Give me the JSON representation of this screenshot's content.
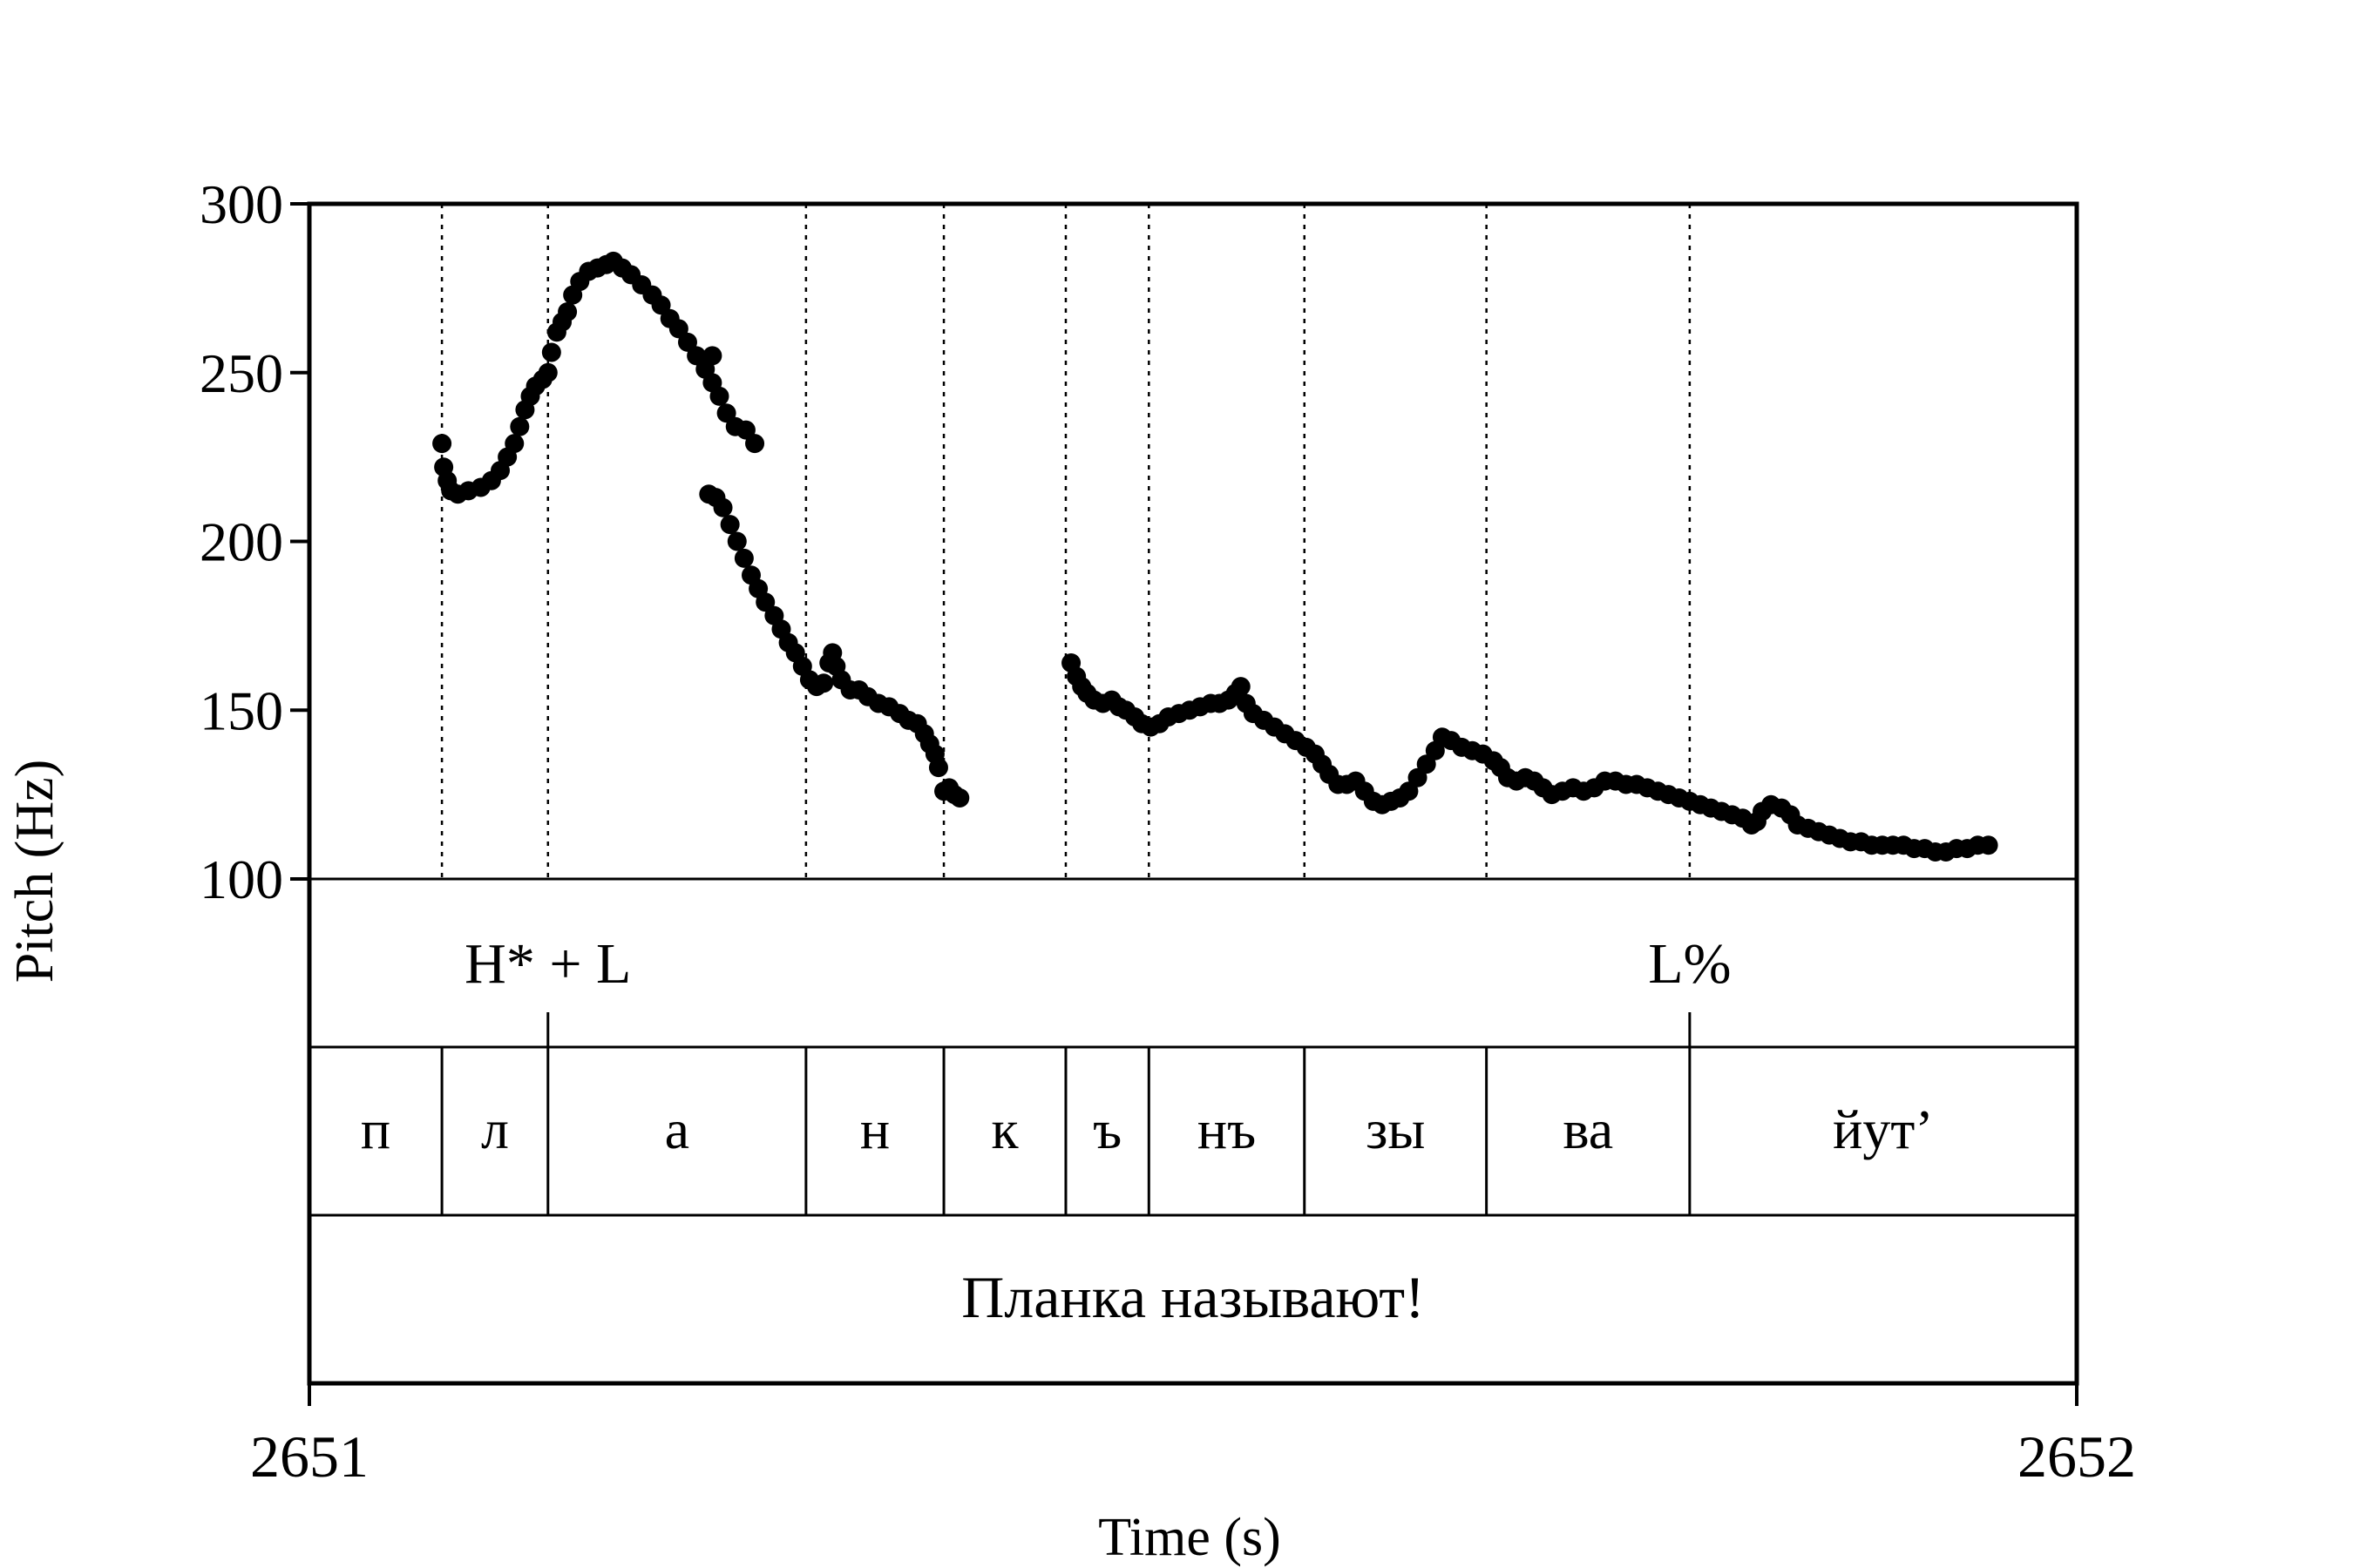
{
  "chart_data": {
    "type": "scatter",
    "xlabel": "Time (s)",
    "ylabel": "Pitch (Hz)",
    "xlim": [
      2651,
      2652
    ],
    "ylim": [
      100,
      300
    ],
    "x_ticks": [
      "2651",
      "2652"
    ],
    "y_ticks": [
      "100",
      "150",
      "200",
      "250",
      "300"
    ],
    "grid": false,
    "series": [
      {
        "color": "#000000",
        "points": [
          [
            2651.075,
            229
          ],
          [
            2651.076,
            222
          ],
          [
            2651.078,
            218
          ],
          [
            2651.08,
            215
          ],
          [
            2651.084,
            214
          ],
          [
            2651.09,
            215
          ],
          [
            2651.097,
            216
          ],
          [
            2651.103,
            218
          ],
          [
            2651.108,
            221
          ],
          [
            2651.112,
            225
          ],
          [
            2651.116,
            229
          ],
          [
            2651.119,
            234
          ],
          [
            2651.122,
            239
          ],
          [
            2651.125,
            243
          ],
          [
            2651.128,
            246
          ],
          [
            2651.132,
            248
          ],
          [
            2651.135,
            250
          ],
          [
            2651.137,
            256
          ],
          [
            2651.14,
            262
          ],
          [
            2651.143,
            265
          ],
          [
            2651.146,
            268
          ],
          [
            2651.149,
            273
          ],
          [
            2651.153,
            277
          ],
          [
            2651.158,
            280
          ],
          [
            2651.163,
            281
          ],
          [
            2651.168,
            282
          ],
          [
            2651.172,
            283
          ],
          [
            2651.177,
            281
          ],
          [
            2651.182,
            279
          ],
          [
            2651.188,
            276
          ],
          [
            2651.194,
            273
          ],
          [
            2651.199,
            270
          ],
          [
            2651.204,
            266
          ],
          [
            2651.209,
            263
          ],
          [
            2651.214,
            259
          ],
          [
            2651.219,
            255
          ],
          [
            2651.224,
            251
          ],
          [
            2651.228,
            247
          ],
          [
            2651.232,
            243
          ],
          [
            2651.236,
            238
          ],
          [
            2651.241,
            234
          ],
          [
            2651.247,
            233
          ],
          [
            2651.252,
            229
          ],
          [
            2651.228,
            255
          ],
          [
            2651.226,
            214
          ],
          [
            2651.23,
            213
          ],
          [
            2651.234,
            210
          ],
          [
            2651.238,
            205
          ],
          [
            2651.242,
            200
          ],
          [
            2651.246,
            195
          ],
          [
            2651.25,
            190
          ],
          [
            2651.254,
            186
          ],
          [
            2651.258,
            182
          ],
          [
            2651.263,
            178
          ],
          [
            2651.267,
            174
          ],
          [
            2651.271,
            170
          ],
          [
            2651.275,
            167
          ],
          [
            2651.279,
            163
          ],
          [
            2651.283,
            159
          ],
          [
            2651.287,
            157
          ],
          [
            2651.291,
            158
          ],
          [
            2651.294,
            164
          ],
          [
            2651.296,
            167
          ],
          [
            2651.298,
            163
          ],
          [
            2651.301,
            159
          ],
          [
            2651.306,
            156
          ],
          [
            2651.311,
            156
          ],
          [
            2651.316,
            154
          ],
          [
            2651.322,
            152
          ],
          [
            2651.328,
            151
          ],
          [
            2651.334,
            149
          ],
          [
            2651.339,
            147
          ],
          [
            2651.344,
            146
          ],
          [
            2651.348,
            143
          ],
          [
            2651.351,
            140
          ],
          [
            2651.354,
            137
          ],
          [
            2651.356,
            133
          ],
          [
            2651.359,
            126
          ],
          [
            2651.362,
            127
          ],
          [
            2651.365,
            125
          ],
          [
            2651.368,
            124
          ],
          [
            2651.431,
            164
          ],
          [
            2651.434,
            160
          ],
          [
            2651.437,
            157
          ],
          [
            2651.44,
            155
          ],
          [
            2651.444,
            153
          ],
          [
            2651.449,
            152
          ],
          [
            2651.454,
            153
          ],
          [
            2651.458,
            151
          ],
          [
            2651.462,
            150
          ],
          [
            2651.467,
            148
          ],
          [
            2651.471,
            146
          ],
          [
            2651.476,
            145
          ],
          [
            2651.481,
            146
          ],
          [
            2651.486,
            148
          ],
          [
            2651.492,
            149
          ],
          [
            2651.498,
            150
          ],
          [
            2651.504,
            151
          ],
          [
            2651.51,
            152
          ],
          [
            2651.515,
            152
          ],
          [
            2651.52,
            153
          ],
          [
            2651.524,
            155
          ],
          [
            2651.527,
            157
          ],
          [
            2651.53,
            152
          ],
          [
            2651.534,
            149
          ],
          [
            2651.54,
            147
          ],
          [
            2651.546,
            145
          ],
          [
            2651.552,
            143
          ],
          [
            2651.558,
            141
          ],
          [
            2651.564,
            139
          ],
          [
            2651.569,
            137
          ],
          [
            2651.573,
            134
          ],
          [
            2651.577,
            131
          ],
          [
            2651.582,
            128
          ],
          [
            2651.587,
            128
          ],
          [
            2651.592,
            129
          ],
          [
            2651.597,
            126
          ],
          [
            2651.602,
            123
          ],
          [
            2651.607,
            122
          ],
          [
            2651.612,
            123
          ],
          [
            2651.617,
            124
          ],
          [
            2651.622,
            126
          ],
          [
            2651.627,
            130
          ],
          [
            2651.632,
            134
          ],
          [
            2651.637,
            138
          ],
          [
            2651.641,
            142
          ],
          [
            2651.646,
            141
          ],
          [
            2651.652,
            139
          ],
          [
            2651.658,
            138
          ],
          [
            2651.664,
            137
          ],
          [
            2651.67,
            135
          ],
          [
            2651.674,
            133
          ],
          [
            2651.678,
            130
          ],
          [
            2651.683,
            129
          ],
          [
            2651.688,
            130
          ],
          [
            2651.693,
            129
          ],
          [
            2651.698,
            127
          ],
          [
            2651.703,
            125
          ],
          [
            2651.709,
            126
          ],
          [
            2651.715,
            127
          ],
          [
            2651.721,
            126
          ],
          [
            2651.727,
            127
          ],
          [
            2651.733,
            129
          ],
          [
            2651.739,
            129
          ],
          [
            2651.745,
            128
          ],
          [
            2651.751,
            128
          ],
          [
            2651.757,
            127
          ],
          [
            2651.763,
            126
          ],
          [
            2651.769,
            125
          ],
          [
            2651.775,
            124
          ],
          [
            2651.781,
            123
          ],
          [
            2651.787,
            122
          ],
          [
            2651.793,
            121
          ],
          [
            2651.799,
            120
          ],
          [
            2651.805,
            119
          ],
          [
            2651.811,
            118
          ],
          [
            2651.816,
            116
          ],
          [
            2651.819,
            117
          ],
          [
            2651.822,
            120
          ],
          [
            2651.827,
            122
          ],
          [
            2651.833,
            121
          ],
          [
            2651.838,
            119
          ],
          [
            2651.842,
            116
          ],
          [
            2651.848,
            115
          ],
          [
            2651.854,
            114
          ],
          [
            2651.86,
            113
          ],
          [
            2651.866,
            112
          ],
          [
            2651.872,
            111
          ],
          [
            2651.878,
            111
          ],
          [
            2651.884,
            110
          ],
          [
            2651.89,
            110
          ],
          [
            2651.896,
            110
          ],
          [
            2651.902,
            110
          ],
          [
            2651.908,
            109
          ],
          [
            2651.914,
            109
          ],
          [
            2651.92,
            108
          ],
          [
            2651.926,
            108
          ],
          [
            2651.932,
            109
          ],
          [
            2651.938,
            109
          ],
          [
            2651.944,
            110
          ],
          [
            2651.95,
            110
          ]
        ]
      }
    ],
    "tiers": {
      "tone_boundaries": [
        2651.075,
        2651.135,
        2651.281,
        2651.359,
        2651.428,
        2651.475,
        2651.563,
        2651.666,
        2651.781
      ],
      "tones": [
        {
          "label": "H* + L",
          "x": 2651.135
        },
        {
          "label": "L%",
          "x": 2651.781
        }
      ],
      "tone_ticks": [
        2651.135,
        2651.781
      ],
      "segments": [
        "п",
        "л",
        "а",
        "н",
        "к",
        "ъ",
        "нъ",
        "зы",
        "ва",
        "йут’"
      ],
      "segment_boundaries": [
        2651.075,
        2651.135,
        2651.281,
        2651.359,
        2651.428,
        2651.475,
        2651.563,
        2651.666,
        2651.781
      ],
      "sentence": "Планка называют!"
    }
  }
}
